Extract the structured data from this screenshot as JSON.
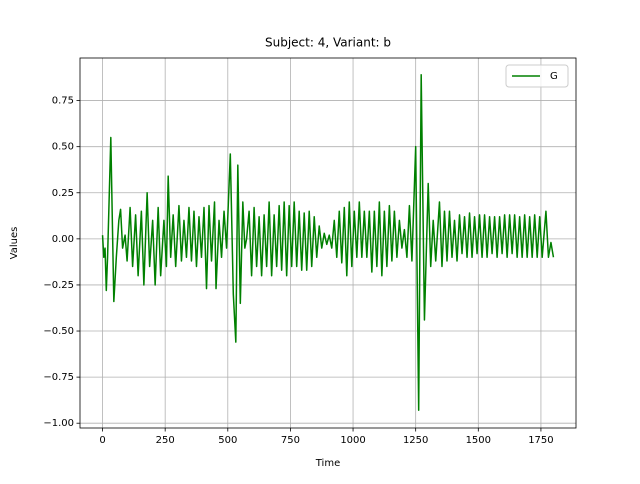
{
  "chart_data": {
    "type": "line",
    "title": "Subject: 4, Variant: b",
    "xlabel": "Time",
    "ylabel": "Values",
    "x": [
      0,
      5,
      10,
      15,
      20,
      33,
      45,
      55,
      65,
      72,
      80,
      90,
      98,
      110,
      120,
      132,
      142,
      155,
      165,
      178,
      188,
      200,
      210,
      222,
      232,
      245,
      255,
      262,
      272,
      282,
      292,
      305,
      315,
      325,
      335,
      345,
      355,
      365,
      375,
      385,
      395,
      405,
      415,
      425,
      435,
      447,
      453,
      465,
      475,
      485,
      495,
      510,
      522,
      532,
      540,
      550,
      560,
      568,
      575,
      585,
      595,
      605,
      615,
      625,
      635,
      645,
      655,
      665,
      675,
      685,
      695,
      705,
      715,
      725,
      735,
      745,
      755,
      765,
      775,
      785,
      795,
      805,
      815,
      825,
      835,
      845,
      855,
      865,
      875,
      885,
      895,
      905,
      915,
      925,
      935,
      945,
      955,
      965,
      975,
      985,
      995,
      1005,
      1015,
      1025,
      1035,
      1045,
      1055,
      1065,
      1075,
      1085,
      1095,
      1105,
      1115,
      1125,
      1135,
      1145,
      1155,
      1165,
      1175,
      1185,
      1195,
      1205,
      1215,
      1225,
      1235,
      1250,
      1262,
      1272,
      1285,
      1300,
      1310,
      1320,
      1330,
      1345,
      1355,
      1365,
      1375,
      1385,
      1395,
      1405,
      1415,
      1425,
      1435,
      1445,
      1455,
      1465,
      1475,
      1485,
      1495,
      1505,
      1515,
      1525,
      1535,
      1545,
      1555,
      1565,
      1575,
      1585,
      1595,
      1605,
      1615,
      1625,
      1635,
      1645,
      1655,
      1665,
      1675,
      1685,
      1695,
      1705,
      1715,
      1725,
      1735,
      1745,
      1755,
      1770,
      1780,
      1790,
      1800
    ],
    "series": [
      {
        "name": "G",
        "color": "#008000",
        "values": [
          0.02,
          -0.1,
          -0.05,
          -0.28,
          -0.1,
          0.55,
          -0.34,
          -0.1,
          0.1,
          0.16,
          -0.05,
          0.02,
          -0.12,
          0.17,
          -0.15,
          0.13,
          -0.2,
          0.15,
          -0.25,
          0.25,
          -0.15,
          0.1,
          -0.25,
          0.17,
          -0.2,
          0.1,
          -0.15,
          0.34,
          -0.1,
          0.13,
          -0.15,
          0.18,
          -0.12,
          0.1,
          -0.1,
          0.17,
          -0.12,
          0.15,
          -0.15,
          0.12,
          -0.1,
          0.17,
          -0.27,
          0.18,
          -0.12,
          0.2,
          -0.27,
          0.1,
          -0.1,
          0.15,
          -0.05,
          0.46,
          -0.3,
          -0.56,
          0.4,
          -0.35,
          0.2,
          -0.05,
          0,
          0.15,
          -0.2,
          0.17,
          -0.15,
          0.12,
          -0.2,
          0.13,
          -0.15,
          0.2,
          -0.2,
          0.13,
          -0.15,
          0.18,
          -0.17,
          0.2,
          -0.2,
          0.18,
          -0.15,
          0.2,
          -0.15,
          0.15,
          -0.17,
          0.14,
          -0.17,
          0.15,
          -0.15,
          0.12,
          -0.1,
          0.07,
          -0.05,
          0.03,
          -0.03,
          0.02,
          -0.05,
          0.1,
          -0.1,
          0.15,
          -0.13,
          0.17,
          -0.2,
          0.2,
          -0.15,
          0.15,
          -0.1,
          0.2,
          -0.1,
          0.15,
          -0.1,
          0.15,
          -0.18,
          0.15,
          -0.15,
          0.2,
          -0.2,
          0.15,
          -0.15,
          0.18,
          -0.12,
          0.15,
          -0.1,
          0.1,
          -0.05,
          0.05,
          -0.1,
          0.18,
          -0.12,
          0.5,
          -0.93,
          0.89,
          -0.44,
          0.3,
          -0.15,
          0.1,
          -0.12,
          0.2,
          -0.15,
          0.15,
          -0.12,
          0.15,
          -0.1,
          0.1,
          -0.12,
          0.13,
          -0.08,
          0.12,
          -0.1,
          0.14,
          -0.1,
          0.12,
          -0.08,
          0.13,
          -0.1,
          0.13,
          -0.1,
          0.12,
          -0.08,
          0.12,
          -0.1,
          0.12,
          -0.08,
          0.13,
          -0.1,
          0.13,
          -0.08,
          0.13,
          -0.1,
          0.12,
          -0.1,
          0.13,
          -0.1,
          0.12,
          -0.1,
          0.13,
          -0.1,
          0.12,
          -0.1,
          0.15,
          -0.1,
          -0.02,
          -0.1
        ]
      }
    ],
    "xlim": [
      -90,
      1890
    ],
    "ylim": [
      -1.026,
      0.981
    ],
    "xticks": [
      0,
      250,
      500,
      750,
      1000,
      1250,
      1500,
      1750
    ],
    "yticks": [
      {
        "value": -1,
        "label": "−1.00"
      },
      {
        "value": -0.75,
        "label": "−0.75"
      },
      {
        "value": -0.5,
        "label": "−0.50"
      },
      {
        "value": -0.25,
        "label": "−0.25"
      },
      {
        "value": 0,
        "label": "0.00"
      },
      {
        "value": 0.25,
        "label": "0.25"
      },
      {
        "value": 0.5,
        "label": "0.50"
      },
      {
        "value": 0.75,
        "label": "0.75"
      }
    ],
    "grid": true,
    "legend": "upper right"
  }
}
